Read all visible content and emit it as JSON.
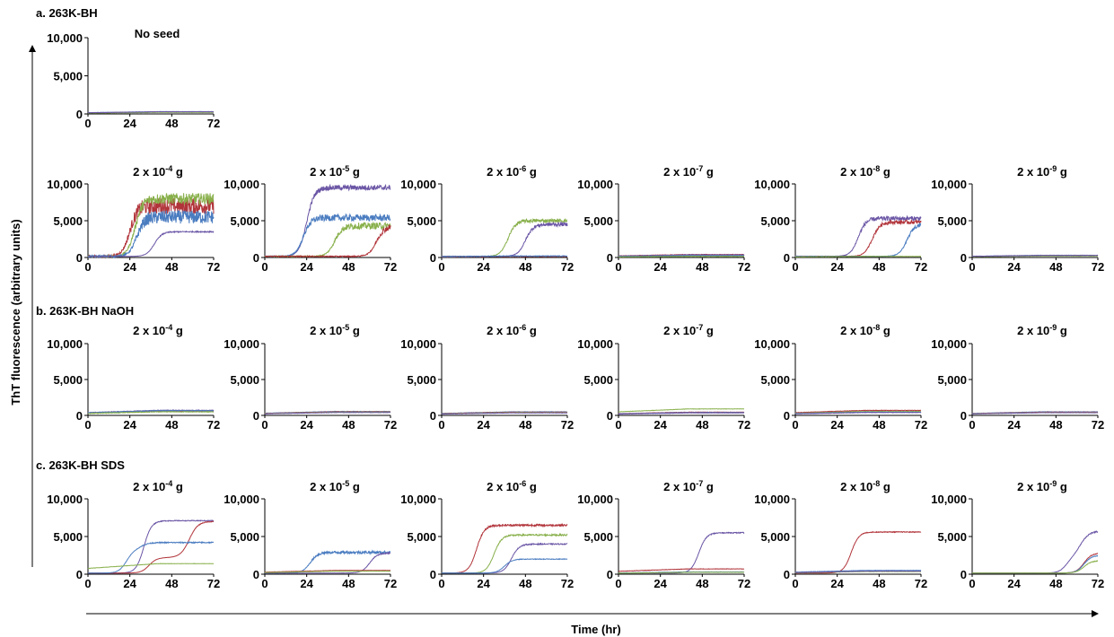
{
  "figure": {
    "ylabel": "ThT fluorescence (arbitrary units)",
    "xlabel": "Time (hr)"
  },
  "colors": {
    "blue": "#4a7cc0",
    "red": "#b1343a",
    "green": "#88b04b",
    "purple": "#6a55a5"
  },
  "sections": [
    {
      "label": "a. 263K-BH"
    },
    {
      "label": "b. 263K-BH NaOH"
    },
    {
      "label": "c. 263K-BH SDS"
    }
  ],
  "chart_data": [
    {
      "type": "line",
      "title": "No seed",
      "x_ticks": [
        "0",
        "24",
        "48",
        "72"
      ],
      "y_ticks": [
        "0",
        "5,000",
        "10,000"
      ],
      "xlim": [
        0,
        72
      ],
      "ylim": [
        0,
        10000
      ],
      "series": [
        {
          "color": "blue",
          "plateau": 300,
          "onset": null
        },
        {
          "color": "red",
          "plateau": 250,
          "onset": null
        },
        {
          "color": "green",
          "plateau": 200,
          "onset": null
        },
        {
          "color": "purple",
          "plateau": 280,
          "onset": null
        }
      ]
    },
    {
      "type": "line",
      "title": "2 x 10",
      "title_exp": "-4",
      "title_unit": " g",
      "x_ticks": [
        "0",
        "24",
        "48",
        "72"
      ],
      "y_ticks": [
        "0",
        "5,000",
        "10,000"
      ],
      "xlim": [
        0,
        72
      ],
      "ylim": [
        0,
        10000
      ],
      "series": [
        {
          "color": "red",
          "plateau": 7000,
          "onset": 24,
          "noise": 2200
        },
        {
          "color": "green",
          "plateau": 8000,
          "onset": 27,
          "noise": 1500
        },
        {
          "color": "blue",
          "plateau": 5500,
          "onset": 28,
          "noise": 1800
        },
        {
          "color": "purple",
          "plateau": 3500,
          "onset": 38,
          "noise": 150
        }
      ]
    },
    {
      "type": "line",
      "title": "2 x 10",
      "title_exp": "-5",
      "title_unit": " g",
      "x_ticks": [
        "0",
        "24",
        "48",
        "72"
      ],
      "y_ticks": [
        "0",
        "5,000",
        "10,000"
      ],
      "xlim": [
        0,
        72
      ],
      "ylim": [
        0,
        10000
      ],
      "series": [
        {
          "color": "purple",
          "plateau": 9500,
          "onset": 24,
          "noise": 700
        },
        {
          "color": "blue",
          "plateau": 5400,
          "onset": 22,
          "noise": 900
        },
        {
          "color": "green",
          "plateau": 4300,
          "onset": 40,
          "noise": 900
        },
        {
          "color": "red",
          "plateau": 4200,
          "onset": 64,
          "noise": 900
        }
      ]
    },
    {
      "type": "line",
      "title": "2 x 10",
      "title_exp": "-6",
      "title_unit": " g",
      "x_ticks": [
        "0",
        "24",
        "48",
        "72"
      ],
      "y_ticks": [
        "0",
        "5,000",
        "10,000"
      ],
      "xlim": [
        0,
        72
      ],
      "ylim": [
        0,
        10000
      ],
      "series": [
        {
          "color": "green",
          "plateau": 5000,
          "onset": 38,
          "noise": 500
        },
        {
          "color": "purple",
          "plateau": 4500,
          "onset": 48,
          "noise": 500
        },
        {
          "color": "red",
          "plateau": 150,
          "onset": null,
          "noise": 150
        },
        {
          "color": "blue",
          "plateau": 200,
          "onset": null,
          "noise": 150
        }
      ]
    },
    {
      "type": "line",
      "title": "2 x 10",
      "title_exp": "-7",
      "title_unit": " g",
      "x_ticks": [
        "0",
        "24",
        "48",
        "72"
      ],
      "y_ticks": [
        "0",
        "5,000",
        "10,000"
      ],
      "xlim": [
        0,
        72
      ],
      "ylim": [
        0,
        10000
      ],
      "series": [
        {
          "color": "red",
          "plateau": 400,
          "onset": null,
          "noise": 100
        },
        {
          "color": "purple",
          "plateau": 350,
          "onset": null,
          "noise": 100
        },
        {
          "color": "blue",
          "plateau": 250,
          "onset": null,
          "noise": 100
        },
        {
          "color": "green",
          "plateau": 150,
          "onset": null,
          "noise": 100
        }
      ]
    },
    {
      "type": "line",
      "title": "2 x 10",
      "title_exp": "-8",
      "title_unit": " g",
      "x_ticks": [
        "0",
        "24",
        "48",
        "72"
      ],
      "y_ticks": [
        "0",
        "5,000",
        "10,000"
      ],
      "xlim": [
        0,
        72
      ],
      "ylim": [
        0,
        10000
      ],
      "series": [
        {
          "color": "purple",
          "plateau": 5300,
          "onset": 36,
          "noise": 600
        },
        {
          "color": "red",
          "plateau": 4800,
          "onset": 44,
          "noise": 500
        },
        {
          "color": "blue",
          "plateau": 4600,
          "onset": 64,
          "noise": 500
        },
        {
          "color": "green",
          "plateau": 150,
          "onset": null,
          "noise": 80
        }
      ]
    },
    {
      "type": "line",
      "title": "2 x 10",
      "title_exp": "-9",
      "title_unit": " g",
      "x_ticks": [
        "0",
        "24",
        "48",
        "72"
      ],
      "y_ticks": [
        "0",
        "5,000",
        "10,000"
      ],
      "xlim": [
        0,
        72
      ],
      "ylim": [
        0,
        10000
      ],
      "series": [
        {
          "color": "blue",
          "plateau": 300,
          "onset": null,
          "noise": 80
        },
        {
          "color": "red",
          "plateau": 250,
          "onset": null,
          "noise": 80
        },
        {
          "color": "green",
          "plateau": 200,
          "onset": null,
          "noise": 80
        },
        {
          "color": "purple",
          "plateau": 280,
          "onset": null,
          "noise": 80
        }
      ]
    },
    {
      "type": "line",
      "title": "2 x 10",
      "title_exp": "-4",
      "title_unit": " g",
      "x_ticks": [
        "0",
        "24",
        "48",
        "72"
      ],
      "y_ticks": [
        "0",
        "5,000",
        "10,000"
      ],
      "xlim": [
        0,
        72
      ],
      "ylim": [
        0,
        10000
      ],
      "series": [
        {
          "color": "purple",
          "plateau": 700,
          "onset": null,
          "noise": 150
        },
        {
          "color": "red",
          "plateau": 600,
          "onset": null,
          "noise": 150
        },
        {
          "color": "blue",
          "plateau": 650,
          "onset": null,
          "noise": 150
        },
        {
          "color": "green",
          "plateau": 500,
          "onset": null,
          "noise": 150
        }
      ]
    },
    {
      "type": "line",
      "title": "2 x 10",
      "title_exp": "-5",
      "title_unit": " g",
      "x_ticks": [
        "0",
        "24",
        "48",
        "72"
      ],
      "y_ticks": [
        "0",
        "5,000",
        "10,000"
      ],
      "xlim": [
        0,
        72
      ],
      "ylim": [
        0,
        10000
      ],
      "series": [
        {
          "color": "blue",
          "plateau": 550,
          "onset": null,
          "noise": 80
        },
        {
          "color": "red",
          "plateau": 500,
          "onset": null,
          "noise": 80
        },
        {
          "color": "green",
          "plateau": 450,
          "onset": null,
          "noise": 80
        },
        {
          "color": "purple",
          "plateau": 400,
          "onset": null,
          "noise": 80
        }
      ]
    },
    {
      "type": "line",
      "title": "2 x 10",
      "title_exp": "-6",
      "title_unit": " g",
      "x_ticks": [
        "0",
        "24",
        "48",
        "72"
      ],
      "y_ticks": [
        "0",
        "5,000",
        "10,000"
      ],
      "xlim": [
        0,
        72
      ],
      "ylim": [
        0,
        10000
      ],
      "series": [
        {
          "color": "blue",
          "plateau": 500,
          "onset": null,
          "noise": 80
        },
        {
          "color": "red",
          "plateau": 450,
          "onset": null,
          "noise": 80
        },
        {
          "color": "green",
          "plateau": 400,
          "onset": null,
          "noise": 80
        },
        {
          "color": "purple",
          "plateau": 350,
          "onset": null,
          "noise": 80
        }
      ]
    },
    {
      "type": "line",
      "title": "2 x 10",
      "title_exp": "-7",
      "title_unit": " g",
      "x_ticks": [
        "0",
        "24",
        "48",
        "72"
      ],
      "y_ticks": [
        "0",
        "5,000",
        "10,000"
      ],
      "xlim": [
        0,
        72
      ],
      "ylim": [
        0,
        10000
      ],
      "series": [
        {
          "color": "green",
          "plateau": 900,
          "onset": null,
          "noise": 80
        },
        {
          "color": "red",
          "plateau": 450,
          "onset": null,
          "noise": 80
        },
        {
          "color": "blue",
          "plateau": 400,
          "onset": null,
          "noise": 80
        },
        {
          "color": "purple",
          "plateau": 350,
          "onset": null,
          "noise": 80
        }
      ]
    },
    {
      "type": "line",
      "title": "2 x 10",
      "title_exp": "-8",
      "title_unit": " g",
      "x_ticks": [
        "0",
        "24",
        "48",
        "72"
      ],
      "y_ticks": [
        "0",
        "5,000",
        "10,000"
      ],
      "xlim": [
        0,
        72
      ],
      "ylim": [
        0,
        10000
      ],
      "series": [
        {
          "color": "red",
          "plateau": 700,
          "onset": null,
          "noise": 100
        },
        {
          "color": "green",
          "plateau": 550,
          "onset": null,
          "noise": 80
        },
        {
          "color": "blue",
          "plateau": 450,
          "onset": null,
          "noise": 80
        },
        {
          "color": "purple",
          "plateau": 400,
          "onset": null,
          "noise": 80
        }
      ]
    },
    {
      "type": "line",
      "title": "2 x 10",
      "title_exp": "-9",
      "title_unit": " g",
      "x_ticks": [
        "0",
        "24",
        "48",
        "72"
      ],
      "y_ticks": [
        "0",
        "5,000",
        "10,000"
      ],
      "xlim": [
        0,
        72
      ],
      "ylim": [
        0,
        10000
      ],
      "series": [
        {
          "color": "blue",
          "plateau": 500,
          "onset": null,
          "noise": 80
        },
        {
          "color": "red",
          "plateau": 450,
          "onset": null,
          "noise": 80
        },
        {
          "color": "green",
          "plateau": 400,
          "onset": null,
          "noise": 80
        },
        {
          "color": "purple",
          "plateau": 380,
          "onset": null,
          "noise": 80
        }
      ]
    },
    {
      "type": "line",
      "title": "2 x 10",
      "title_exp": "-4",
      "title_unit": " g",
      "x_ticks": [
        "0",
        "24",
        "48",
        "72"
      ],
      "y_ticks": [
        "0",
        "5,000",
        "10,000"
      ],
      "xlim": [
        0,
        72
      ],
      "ylim": [
        0,
        10000
      ],
      "series": [
        {
          "color": "purple",
          "plateau": 7100,
          "onset": 32,
          "noise": 100
        },
        {
          "color": "red",
          "plateau": 7000,
          "onset": 58,
          "noise": 100,
          "mid": 2200,
          "mid_onset": 35
        },
        {
          "color": "blue",
          "plateau": 4200,
          "onset": 30,
          "noise": 150,
          "mid": 3200
        },
        {
          "color": "green",
          "plateau": 1400,
          "onset": null,
          "noise": 60
        }
      ]
    },
    {
      "type": "line",
      "title": "2 x 10",
      "title_exp": "-5",
      "title_unit": " g",
      "x_ticks": [
        "0",
        "24",
        "48",
        "72"
      ],
      "y_ticks": [
        "0",
        "5,000",
        "10,000"
      ],
      "xlim": [
        0,
        72
      ],
      "ylim": [
        0,
        10000
      ],
      "series": [
        {
          "color": "blue",
          "plateau": 2900,
          "onset": 26,
          "noise": 350
        },
        {
          "color": "purple",
          "plateau": 2800,
          "onset": 60,
          "noise": 150
        },
        {
          "color": "red",
          "plateau": 500,
          "onset": null,
          "noise": 60
        },
        {
          "color": "green",
          "plateau": 400,
          "onset": null,
          "noise": 60
        }
      ]
    },
    {
      "type": "line",
      "title": "2 x 10",
      "title_exp": "-6",
      "title_unit": " g",
      "x_ticks": [
        "0",
        "24",
        "48",
        "72"
      ],
      "y_ticks": [
        "0",
        "5,000",
        "10,000"
      ],
      "xlim": [
        0,
        72
      ],
      "ylim": [
        0,
        10000
      ],
      "series": [
        {
          "color": "red",
          "plateau": 6500,
          "onset": 20,
          "noise": 250
        },
        {
          "color": "green",
          "plateau": 5200,
          "onset": 30,
          "noise": 200
        },
        {
          "color": "purple",
          "plateau": 4000,
          "onset": 40,
          "noise": 150
        },
        {
          "color": "blue",
          "plateau": 2000,
          "onset": 36,
          "noise": 80
        }
      ]
    },
    {
      "type": "line",
      "title": "2 x 10",
      "title_exp": "-7",
      "title_unit": " g",
      "x_ticks": [
        "0",
        "24",
        "48",
        "72"
      ],
      "y_ticks": [
        "0",
        "5,000",
        "10,000"
      ],
      "xlim": [
        0,
        72
      ],
      "ylim": [
        0,
        10000
      ],
      "series": [
        {
          "color": "purple",
          "plateau": 5500,
          "onset": 46,
          "noise": 120
        },
        {
          "color": "red",
          "plateau": 700,
          "onset": null,
          "noise": 80
        },
        {
          "color": "blue",
          "plateau": 300,
          "onset": null,
          "noise": 60
        },
        {
          "color": "green",
          "plateau": 250,
          "onset": null,
          "noise": 60
        }
      ]
    },
    {
      "type": "line",
      "title": "2 x 10",
      "title_exp": "-8",
      "title_unit": " g",
      "x_ticks": [
        "0",
        "24",
        "48",
        "72"
      ],
      "y_ticks": [
        "0",
        "5,000",
        "10,000"
      ],
      "xlim": [
        0,
        72
      ],
      "ylim": [
        0,
        10000
      ],
      "series": [
        {
          "color": "red",
          "plateau": 5600,
          "onset": 32,
          "noise": 100
        },
        {
          "color": "blue",
          "plateau": 500,
          "onset": null,
          "noise": 80
        },
        {
          "color": "green",
          "plateau": 350,
          "onset": null,
          "noise": 60
        },
        {
          "color": "purple",
          "plateau": 400,
          "onset": null,
          "noise": 60
        }
      ]
    },
    {
      "type": "line",
      "title": "2 x 10",
      "title_exp": "-9",
      "title_unit": " g",
      "x_ticks": [
        "0",
        "24",
        "48",
        "72"
      ],
      "y_ticks": [
        "0",
        "5,000",
        "10,000"
      ],
      "xlim": [
        0,
        72
      ],
      "ylim": [
        0,
        10000
      ],
      "series": [
        {
          "color": "purple",
          "plateau": 5700,
          "onset": 62,
          "noise": 200,
          "mid": 2200
        },
        {
          "color": "red",
          "plateau": 2800,
          "onset": 64,
          "noise": 100
        },
        {
          "color": "blue",
          "plateau": 2500,
          "onset": 64,
          "noise": 100
        },
        {
          "color": "green",
          "plateau": 1800,
          "onset": 64,
          "noise": 100
        }
      ]
    }
  ]
}
